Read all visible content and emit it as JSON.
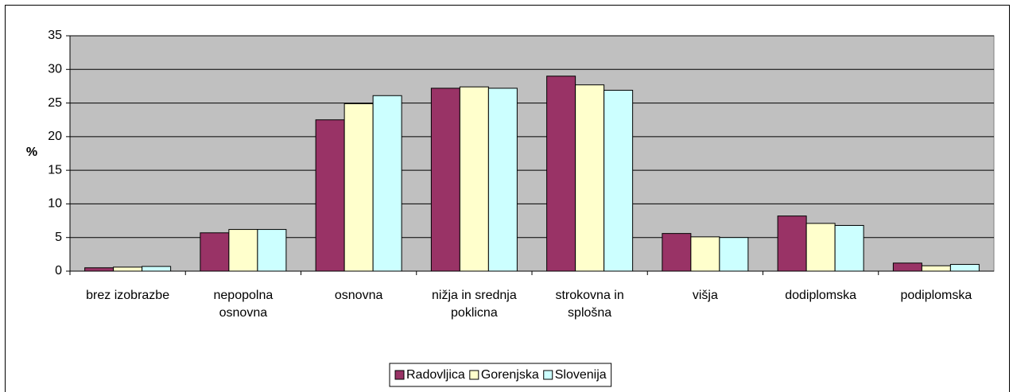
{
  "chart_data": {
    "type": "bar",
    "ylabel": "%",
    "categories": [
      "brez izobrazbe",
      "nepopolna osnovna",
      "osnovna",
      "nižja  in srednja poklicna",
      "strokovna in splošna",
      "višja",
      "dodiplomska",
      "podiplomska"
    ],
    "series": [
      {
        "name": "Radovljica",
        "color": "#993366",
        "values": [
          0.5,
          5.7,
          22.5,
          27.2,
          29.0,
          5.6,
          8.2,
          1.2
        ]
      },
      {
        "name": "Gorenjska",
        "color": "#ffffcc",
        "values": [
          0.6,
          6.2,
          24.9,
          27.4,
          27.7,
          5.1,
          7.1,
          0.8
        ]
      },
      {
        "name": "Slovenija",
        "color": "#ccffff",
        "values": [
          0.7,
          6.2,
          26.1,
          27.2,
          26.9,
          5.0,
          6.8,
          1.0
        ]
      }
    ],
    "ylim": [
      0,
      35
    ],
    "yticks": [
      0,
      5,
      10,
      15,
      20,
      25,
      30,
      35
    ],
    "grid": true,
    "legend": "bottom",
    "plot_background": "#c0c0c0"
  }
}
